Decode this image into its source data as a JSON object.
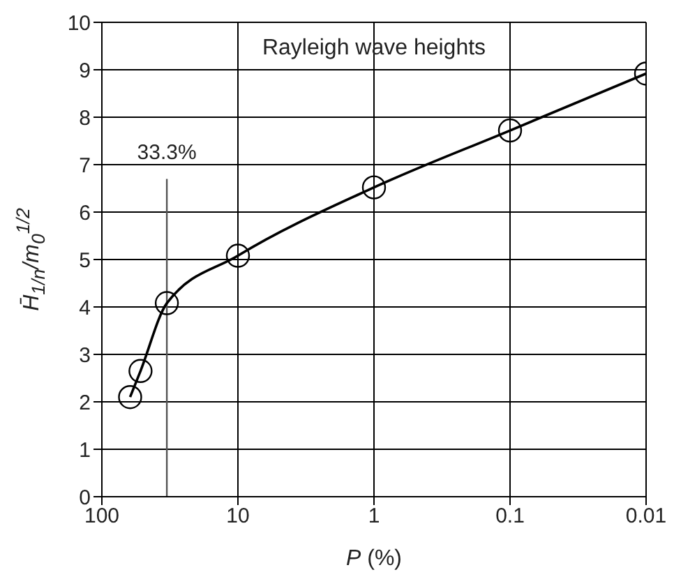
{
  "chart_data": {
    "type": "line",
    "xlabel": "P (%)",
    "ylabel": "H̄$_{1/n}$/m$_{0}$$^{1/2}$",
    "annotations": [
      "Rayleigh wave heights"
    ],
    "x": [
      62,
      52,
      33.3,
      10,
      1,
      0.1,
      0.01
    ],
    "series": [
      {
        "color": "#000000",
        "values": [
          2.1,
          2.65,
          4.08,
          5.08,
          6.52,
          7.72,
          8.92
        ]
      }
    ],
    "log": "x",
    "xlim": [
      100,
      0.01
    ],
    "xticks": [
      100,
      10,
      1,
      0.1,
      0.01
    ],
    "ylim": [
      0,
      10
    ],
    "yticks": [
      0,
      1,
      2,
      3,
      4,
      5,
      6,
      7,
      8,
      9,
      10
    ],
    "grid": true,
    "marker": "circle",
    "line_style": "solid",
    "ref_lines": [
      {
        "axis": "x",
        "value": 33.3,
        "label": "33.3%",
        "color": "#555555"
      }
    ]
  }
}
